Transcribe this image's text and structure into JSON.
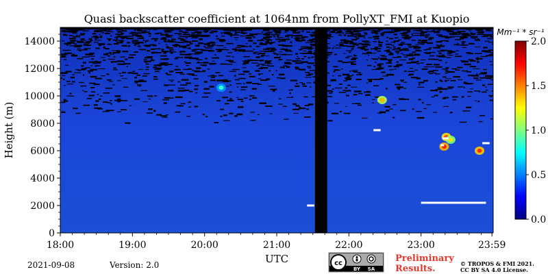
{
  "chart_data": {
    "type": "heatmap",
    "title": "Quasi backscatter coefficient at 1064nm from PollyXT_FMI at Kuopio",
    "xlabel": "UTC",
    "ylabel": "Height (m)",
    "x_ticks": [
      "18:00",
      "19:00",
      "20:00",
      "21:00",
      "22:00",
      "23:00",
      "23:59"
    ],
    "x_tick_hours": [
      18,
      19,
      20,
      21,
      22,
      23,
      23.983
    ],
    "xlim_hours": [
      18,
      24
    ],
    "y_ticks": [
      0,
      2000,
      4000,
      6000,
      8000,
      10000,
      12000,
      14000
    ],
    "ylim": [
      0,
      15000
    ],
    "colorbar": {
      "unit": "Mm⁻¹ * sr⁻¹",
      "range": [
        0.0,
        2.0
      ],
      "ticks": [
        0.0,
        0.5,
        1.0,
        1.5,
        2.0
      ],
      "tick_labels": [
        "0.0",
        "0.5",
        "1.0",
        "1.5",
        "2.0"
      ],
      "colormap": "jet"
    },
    "background_value": 0.15,
    "no_data_periods": [
      {
        "start_hour": 21.53,
        "end_hour": 21.7
      }
    ],
    "noise_above_height_m": 9000,
    "features": [
      {
        "time_hour": 22.46,
        "height_m": 9700,
        "value": 1.1
      },
      {
        "time_hour": 23.35,
        "height_m": 7000,
        "value": 1.3
      },
      {
        "time_hour": 23.41,
        "height_m": 6800,
        "value": 1.0
      },
      {
        "time_hour": 23.32,
        "height_m": 6300,
        "value": 1.4
      },
      {
        "time_hour": 23.81,
        "height_m": 6000,
        "value": 1.35
      },
      {
        "time_hour": 20.23,
        "height_m": 10600,
        "value": 0.55
      }
    ],
    "saturated_segments": [
      {
        "start_hour": 23.0,
        "end_hour": 23.9,
        "height_m": 2200
      },
      {
        "start_hour": 22.34,
        "end_hour": 22.44,
        "height_m": 7500
      },
      {
        "start_hour": 21.42,
        "end_hour": 21.52,
        "height_m": 2000
      },
      {
        "start_hour": 23.85,
        "end_hour": 23.95,
        "height_m": 6550
      },
      {
        "start_hour": 23.3,
        "end_hour": 23.38,
        "height_m": 6900
      },
      {
        "start_hour": 23.27,
        "end_hour": 23.32,
        "height_m": 6400
      }
    ]
  },
  "footer": {
    "date": "2021-09-08",
    "version": "Version: 2.0",
    "preliminary_line1": "Preliminary",
    "preliminary_line2": "Results.",
    "copyright_line1": "© TROPOS & FMI 2021.",
    "copyright_line2": "CC BY SA 4.0 License.",
    "cc_by": "BY",
    "cc_sa": "SA"
  },
  "colors": {
    "nodata": "#000000",
    "saturated": "#ffffff"
  }
}
